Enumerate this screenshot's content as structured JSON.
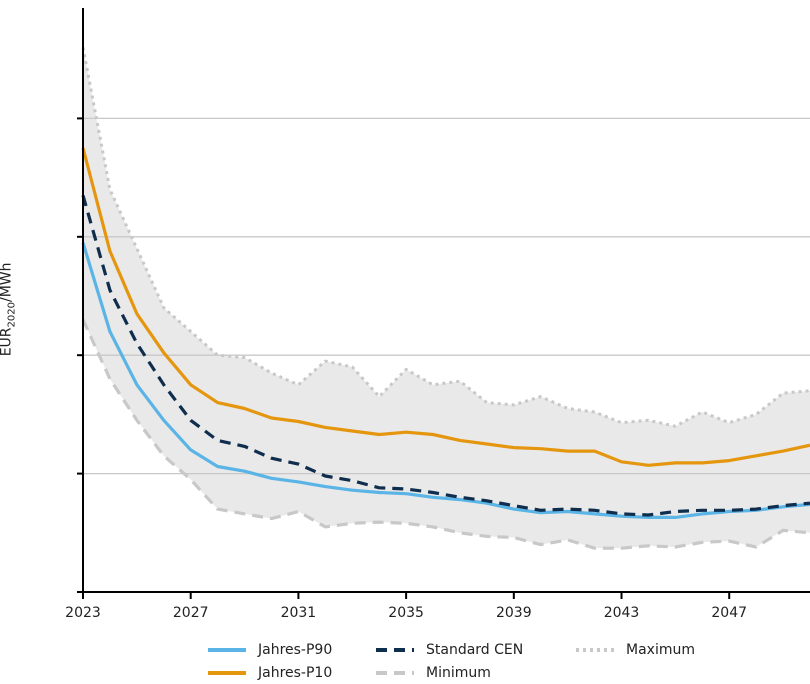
{
  "chart_data": {
    "type": "line",
    "title": "",
    "xlabel": "",
    "ylabel": "EUR2020/MWh",
    "ylabel_parts": {
      "base": "EUR",
      "sub": "2020",
      "suffix": "/MWh"
    },
    "xlim": [
      2023,
      2050
    ],
    "ylim": [
      0,
      5
    ],
    "xticks": [
      "2023",
      "2027",
      "2031",
      "2035",
      "2039",
      "2043",
      "2047"
    ],
    "yticks": [
      1,
      2,
      3,
      4
    ],
    "y_tick_labels_shown": false,
    "grid": "horizontal",
    "legend_position": "bottom",
    "band": {
      "upper": "Maximum",
      "lower": "Minimum",
      "fill": "#e9e9e9"
    },
    "x": [
      2023,
      2024,
      2025,
      2026,
      2027,
      2028,
      2029,
      2030,
      2031,
      2032,
      2033,
      2034,
      2035,
      2036,
      2037,
      2038,
      2039,
      2040,
      2041,
      2042,
      2043,
      2044,
      2045,
      2046,
      2047,
      2048,
      2049,
      2050
    ],
    "series": [
      {
        "name": "Maximum",
        "color": "#c8c8c8",
        "style": "dotted",
        "values": [
          4.6,
          3.4,
          2.9,
          2.4,
          2.2,
          2.0,
          1.98,
          1.85,
          1.75,
          1.95,
          1.9,
          1.65,
          1.88,
          1.75,
          1.78,
          1.6,
          1.58,
          1.65,
          1.55,
          1.52,
          1.43,
          1.45,
          1.4,
          1.52,
          1.43,
          1.5,
          1.68,
          1.7
        ]
      },
      {
        "name": "Jahres-P10",
        "color": "#e5960f",
        "style": "solid",
        "values": [
          3.75,
          2.88,
          2.35,
          2.02,
          1.75,
          1.6,
          1.55,
          1.47,
          1.44,
          1.39,
          1.36,
          1.33,
          1.35,
          1.33,
          1.28,
          1.25,
          1.22,
          1.21,
          1.19,
          1.19,
          1.1,
          1.07,
          1.09,
          1.09,
          1.11,
          1.15,
          1.19,
          1.24
        ]
      },
      {
        "name": "Standard CEN",
        "color": "#0f2d4d",
        "style": "dashed",
        "values": [
          3.35,
          2.55,
          2.1,
          1.75,
          1.45,
          1.28,
          1.23,
          1.13,
          1.08,
          0.98,
          0.94,
          0.88,
          0.87,
          0.84,
          0.8,
          0.77,
          0.73,
          0.69,
          0.7,
          0.69,
          0.66,
          0.65,
          0.68,
          0.69,
          0.69,
          0.7,
          0.73,
          0.75
        ]
      },
      {
        "name": "Jahres-P90",
        "color": "#5ab4e6",
        "style": "solid",
        "values": [
          2.95,
          2.2,
          1.75,
          1.45,
          1.2,
          1.06,
          1.02,
          0.96,
          0.93,
          0.89,
          0.86,
          0.84,
          0.83,
          0.8,
          0.78,
          0.75,
          0.7,
          0.67,
          0.68,
          0.66,
          0.64,
          0.63,
          0.63,
          0.66,
          0.68,
          0.69,
          0.72,
          0.74
        ]
      },
      {
        "name": "Minimum",
        "color": "#c8c8c8",
        "style": "dashed",
        "values": [
          2.3,
          1.8,
          1.45,
          1.15,
          0.95,
          0.7,
          0.66,
          0.62,
          0.68,
          0.55,
          0.58,
          0.59,
          0.58,
          0.55,
          0.5,
          0.47,
          0.46,
          0.4,
          0.44,
          0.37,
          0.37,
          0.39,
          0.38,
          0.42,
          0.43,
          0.38,
          0.52,
          0.5
        ]
      }
    ],
    "legend": [
      {
        "label": "Jahres-P90",
        "series": "Jahres-P90"
      },
      {
        "label": "Standard CEN",
        "series": "Standard CEN"
      },
      {
        "label": "Maximum",
        "series": "Maximum"
      },
      {
        "label": "Jahres-P10",
        "series": "Jahres-P10"
      },
      {
        "label": "Minimum",
        "series": "Minimum"
      }
    ]
  }
}
